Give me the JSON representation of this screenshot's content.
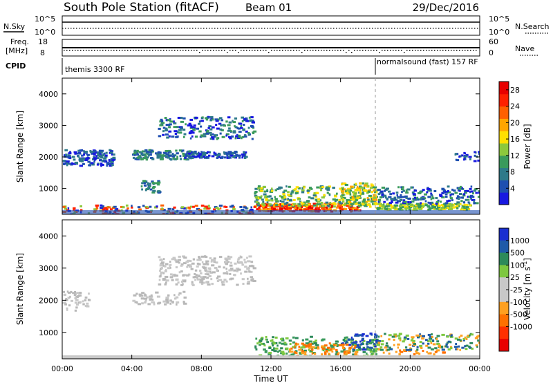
{
  "header": {
    "station": "South Pole Station (fitACF)",
    "beam": "Beam 01",
    "date": "29/Dec/2016"
  },
  "top_panels": {
    "nsky_label": "N.Sky",
    "nsearch_label": "N.Search",
    "noise_ticks": [
      "10^5",
      "10^0"
    ],
    "freq_label_1": "Freq.",
    "freq_label_2": "[MHz]",
    "freq_ticks": [
      "18",
      "8"
    ],
    "nave_label": "Nave",
    "nave_ticks": [
      "60",
      "0"
    ],
    "cpid_label": "CPID",
    "cpid_left": "themis 3300 RF",
    "cpid_right": "normalsound (fast) 157 RF",
    "cpid_change_hours": 18.0
  },
  "chart_data": [
    {
      "type": "heatmap",
      "name": "power",
      "xlabel": "",
      "ylabel": "Slant Range [km]",
      "x_range_hours": [
        0,
        24
      ],
      "y_range_km": [
        180,
        4500
      ],
      "y_ticks": [
        "1000",
        "2000",
        "3000",
        "4000"
      ],
      "colorbar": {
        "label": "Power [dB]",
        "ticks": [
          "4",
          "8",
          "12",
          "16",
          "20",
          "24",
          "28"
        ],
        "range": [
          0,
          30
        ],
        "colors": [
          "#1818e0",
          "#1e4fb0",
          "#2e7a8a",
          "#3a9a5c",
          "#8cc83c",
          "#ffe000",
          "#ffa500",
          "#ff6000",
          "#ff2000",
          "#e80000"
        ]
      }
    },
    {
      "type": "heatmap",
      "name": "velocity",
      "xlabel": "Time UT",
      "ylabel": "Slant Range [km]",
      "x_range_hours": [
        0,
        24
      ],
      "y_range_km": [
        180,
        4500
      ],
      "x_ticks": [
        "00:00",
        "04:00",
        "08:00",
        "12:00",
        "16:00",
        "20:00",
        "00:00"
      ],
      "y_ticks": [
        "1000",
        "2000",
        "3000",
        "4000"
      ],
      "colorbar": {
        "label": "Velocity [m s",
        "label_sup": "-1",
        "label_end": "]",
        "ticks": [
          "1000",
          "500",
          "100",
          "25",
          "-25",
          "-100",
          "-500",
          "-1000"
        ],
        "colors": [
          "#1a2fd0",
          "#1f5aa8",
          "#2d8a5a",
          "#7dc840",
          "#c8c8c8",
          "#c8c8c8",
          "#ffa020",
          "#ff7000",
          "#ff3000",
          "#e80000"
        ]
      },
      "regions": [
        {
          "t0": 0.0,
          "t1": 1.5,
          "r0": 1700,
          "r1": 2300,
          "level": "gray"
        },
        {
          "t0": 4.0,
          "t1": 7.0,
          "r0": 1900,
          "r1": 2300,
          "level": "gray"
        },
        {
          "t0": 5.5,
          "t1": 11.0,
          "r0": 2500,
          "r1": 3400,
          "level": "gray"
        },
        {
          "t0": 11.0,
          "t1": 18.0,
          "r0": 250,
          "r1": 900,
          "level": "green"
        },
        {
          "t0": 16.0,
          "t1": 18.0,
          "r0": 500,
          "r1": 1000,
          "level": "blue"
        },
        {
          "t0": 13.0,
          "t1": 17.0,
          "r0": 300,
          "r1": 700,
          "level": "orange"
        },
        {
          "t0": 18.0,
          "t1": 22.0,
          "r0": 350,
          "r1": 480,
          "level": "orange"
        },
        {
          "t0": 18.0,
          "t1": 24.0,
          "r0": 480,
          "r1": 1000,
          "level": "mixed"
        }
      ]
    }
  ]
}
